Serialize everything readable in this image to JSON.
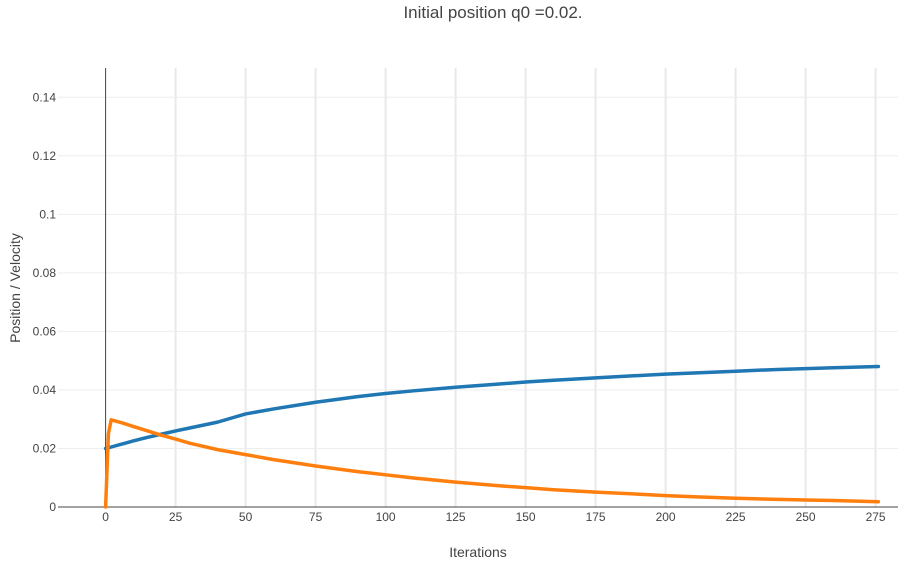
{
  "chart_data": {
    "type": "line",
    "title": "Initial position q0 =0.02.",
    "xlabel": "Iterations",
    "ylabel": "Position / Velocity",
    "xlim": [
      -17,
      283
    ],
    "ylim": [
      0,
      0.15
    ],
    "xticks": [
      0,
      25,
      50,
      75,
      100,
      125,
      150,
      175,
      200,
      225,
      250,
      275
    ],
    "yticks": [
      0,
      0.02,
      0.04,
      0.06,
      0.08,
      0.1,
      0.12,
      0.14
    ],
    "ytick_labels": [
      "0",
      "0.02",
      "0.04",
      "0.06",
      "0.08",
      "0.1",
      "0.12",
      "0.14"
    ],
    "grid": true,
    "series": [
      {
        "color": "#1f77b4",
        "x": [
          0,
          1,
          2,
          5,
          10,
          15,
          20,
          25,
          30,
          40,
          50,
          60,
          75,
          90,
          100,
          110,
          125,
          140,
          150,
          160,
          175,
          190,
          200,
          210,
          225,
          240,
          250,
          260,
          276
        ],
        "y": [
          0.02,
          0.0202,
          0.0205,
          0.0213,
          0.0226,
          0.0238,
          0.0249,
          0.026,
          0.027,
          0.029,
          0.0318,
          0.0335,
          0.0358,
          0.0377,
          0.0388,
          0.0397,
          0.0409,
          0.042,
          0.0427,
          0.0433,
          0.0441,
          0.0449,
          0.0454,
          0.0458,
          0.0464,
          0.047,
          0.0473,
          0.0476,
          0.048
        ]
      },
      {
        "color": "#ff7f0e",
        "x": [
          0,
          1,
          2,
          5,
          10,
          15,
          20,
          25,
          30,
          40,
          50,
          60,
          75,
          90,
          100,
          110,
          125,
          140,
          150,
          160,
          175,
          190,
          200,
          210,
          225,
          240,
          250,
          260,
          276
        ],
        "y": [
          0,
          0.025,
          0.0298,
          0.029,
          0.0275,
          0.026,
          0.0245,
          0.0232,
          0.0218,
          0.0196,
          0.0179,
          0.0162,
          0.014,
          0.0121,
          0.011,
          0.0099,
          0.0085,
          0.0073,
          0.0066,
          0.0059,
          0.0051,
          0.0044,
          0.0039,
          0.0035,
          0.003,
          0.0026,
          0.0024,
          0.0022,
          0.0018
        ]
      }
    ]
  }
}
